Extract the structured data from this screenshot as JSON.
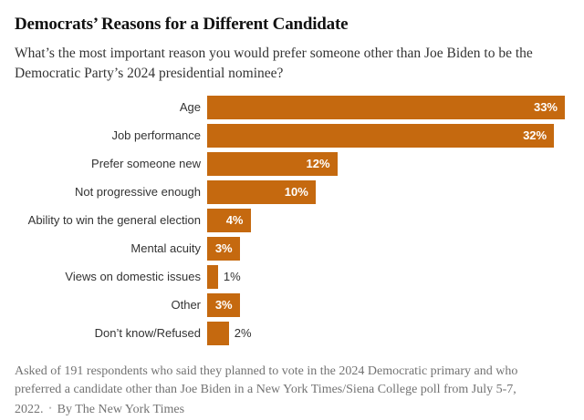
{
  "header": {
    "title": "Democrats’ Reasons for a Different Candidate",
    "subtitle": "What’s the most important reason you would prefer someone other than Joe Biden to be the Democratic Party’s 2024 presidential nominee?"
  },
  "chart_data": {
    "type": "bar",
    "orientation": "horizontal",
    "title": "Democrats’ Reasons for a Different Candidate",
    "subtitle": "What’s the most important reason you would prefer someone other than Joe Biden to be the Democratic Party’s 2024 presidential nominee?",
    "categories": [
      "Age",
      "Job performance",
      "Prefer someone new",
      "Not progressive enough",
      "Ability to win the general election",
      "Mental acuity",
      "Views on domestic issues",
      "Other",
      "Don’t know/Refused"
    ],
    "values": [
      33,
      32,
      12,
      10,
      4,
      3,
      1,
      3,
      2
    ],
    "value_labels": [
      "33%",
      "32%",
      "12%",
      "10%",
      "4%",
      "3%",
      "1%",
      "3%",
      "2%"
    ],
    "xlim": [
      0,
      33
    ],
    "grid": false,
    "legend": false,
    "bar_color": "#C5690F",
    "inside_label_min_value": 3,
    "inside_label_color": "#ffffff",
    "outside_label_color": "#333333"
  },
  "footer": {
    "note": "Asked of 191 respondents who said they planned to vote in the 2024 Democratic primary and who preferred a candidate other than Joe Biden in a New York Times/Siena College poll from July 5-7, 2022.",
    "separator": "•",
    "byline": "By The New York Times"
  }
}
